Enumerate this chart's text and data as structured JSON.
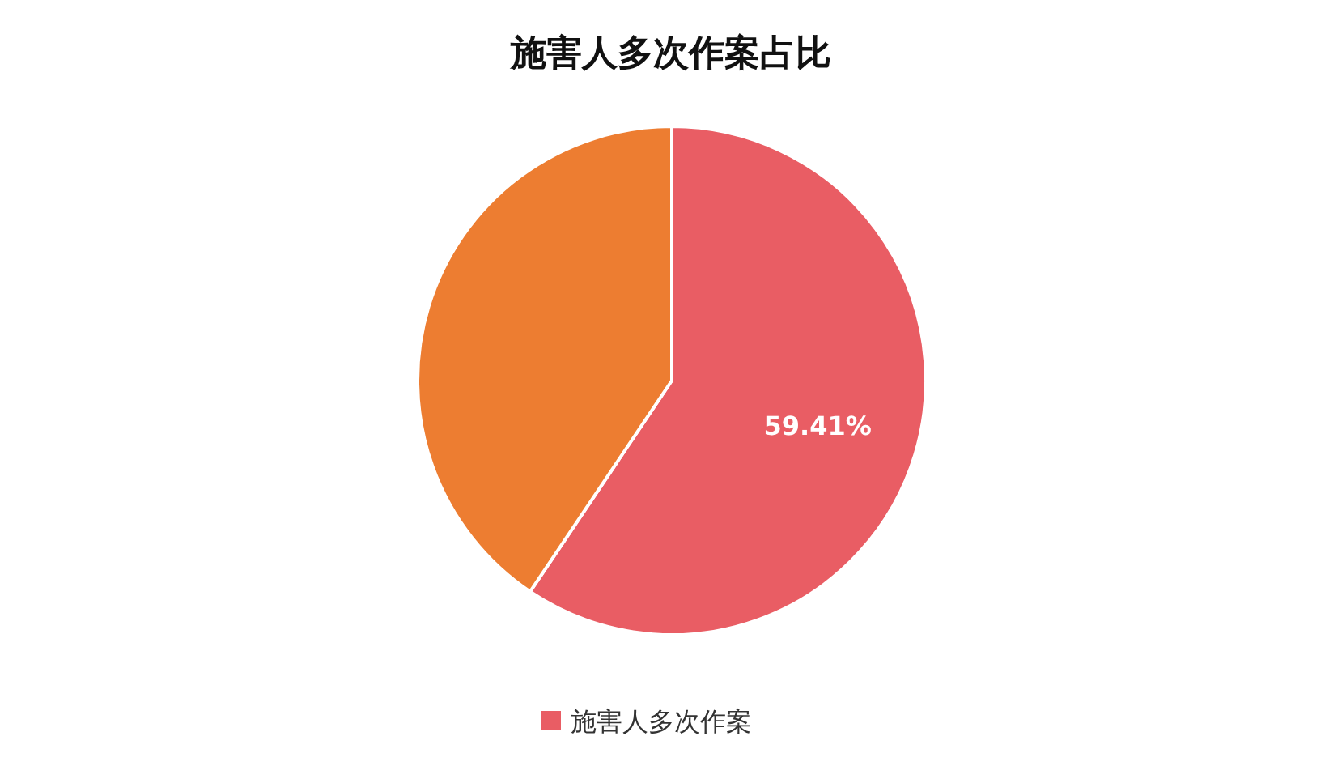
{
  "chart_data": {
    "type": "pie",
    "title": "施害人多次作案占比",
    "categories": [
      "施害人多次作案",
      null
    ],
    "values": [
      59.41,
      40.59
    ],
    "colors": [
      "#e95d64",
      "#ed7d31"
    ],
    "value_labels": [
      "59.41%",
      null
    ],
    "legend": "bottom"
  }
}
